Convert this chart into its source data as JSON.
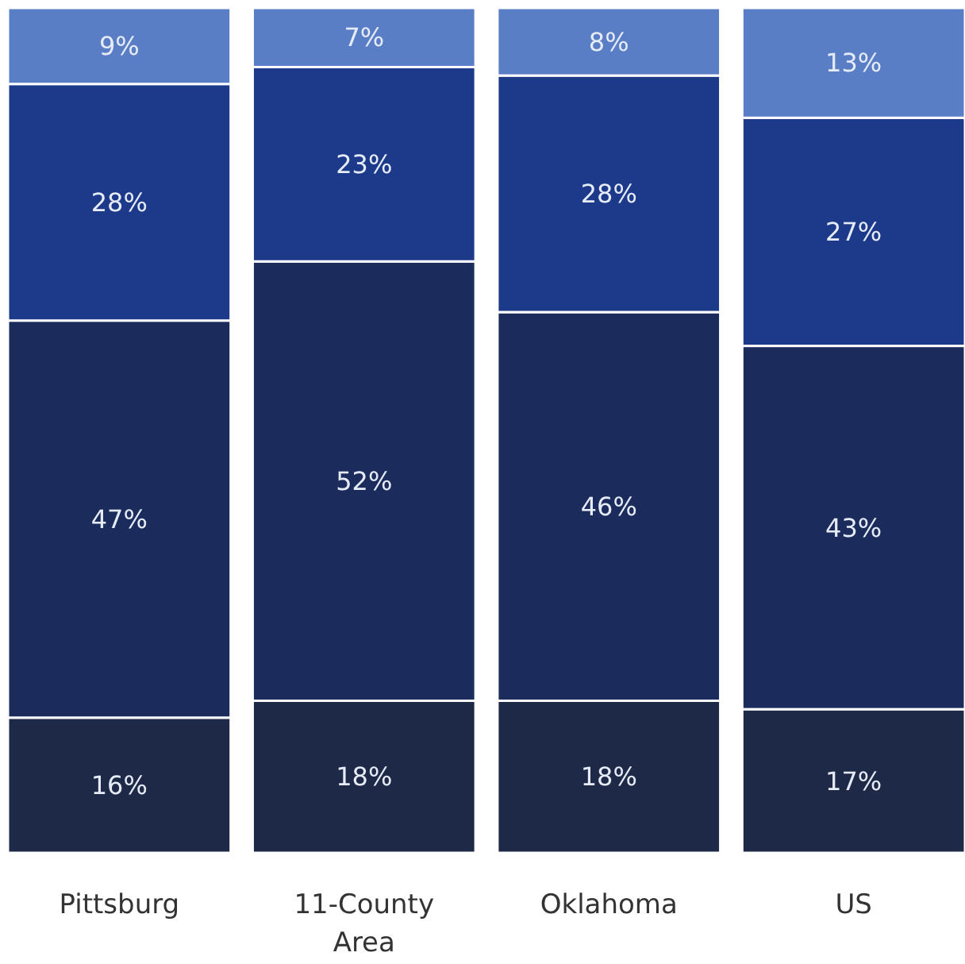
{
  "chart_data": {
    "type": "bar",
    "stacked": true,
    "categories": [
      "Pittsburg",
      "11-County Area",
      "Oklahoma",
      "US"
    ],
    "ylim": [
      0,
      100
    ],
    "series": [
      {
        "color": "#1e2847",
        "values": [
          16,
          18,
          18,
          17
        ],
        "value_labels": [
          "16%",
          "18%",
          "18%",
          "17%"
        ]
      },
      {
        "color": "#1b2b5c",
        "values": [
          47,
          52,
          46,
          43
        ],
        "value_labels": [
          "47%",
          "52%",
          "46%",
          "43%"
        ]
      },
      {
        "color": "#1d3a8a",
        "values": [
          28,
          23,
          28,
          27
        ],
        "value_labels": [
          "28%",
          "23%",
          "28%",
          "27%"
        ]
      },
      {
        "color": "#5a7ec6",
        "values": [
          9,
          7,
          8,
          13
        ],
        "value_labels": [
          "9%",
          "7%",
          "8%",
          "13%"
        ]
      }
    ]
  }
}
